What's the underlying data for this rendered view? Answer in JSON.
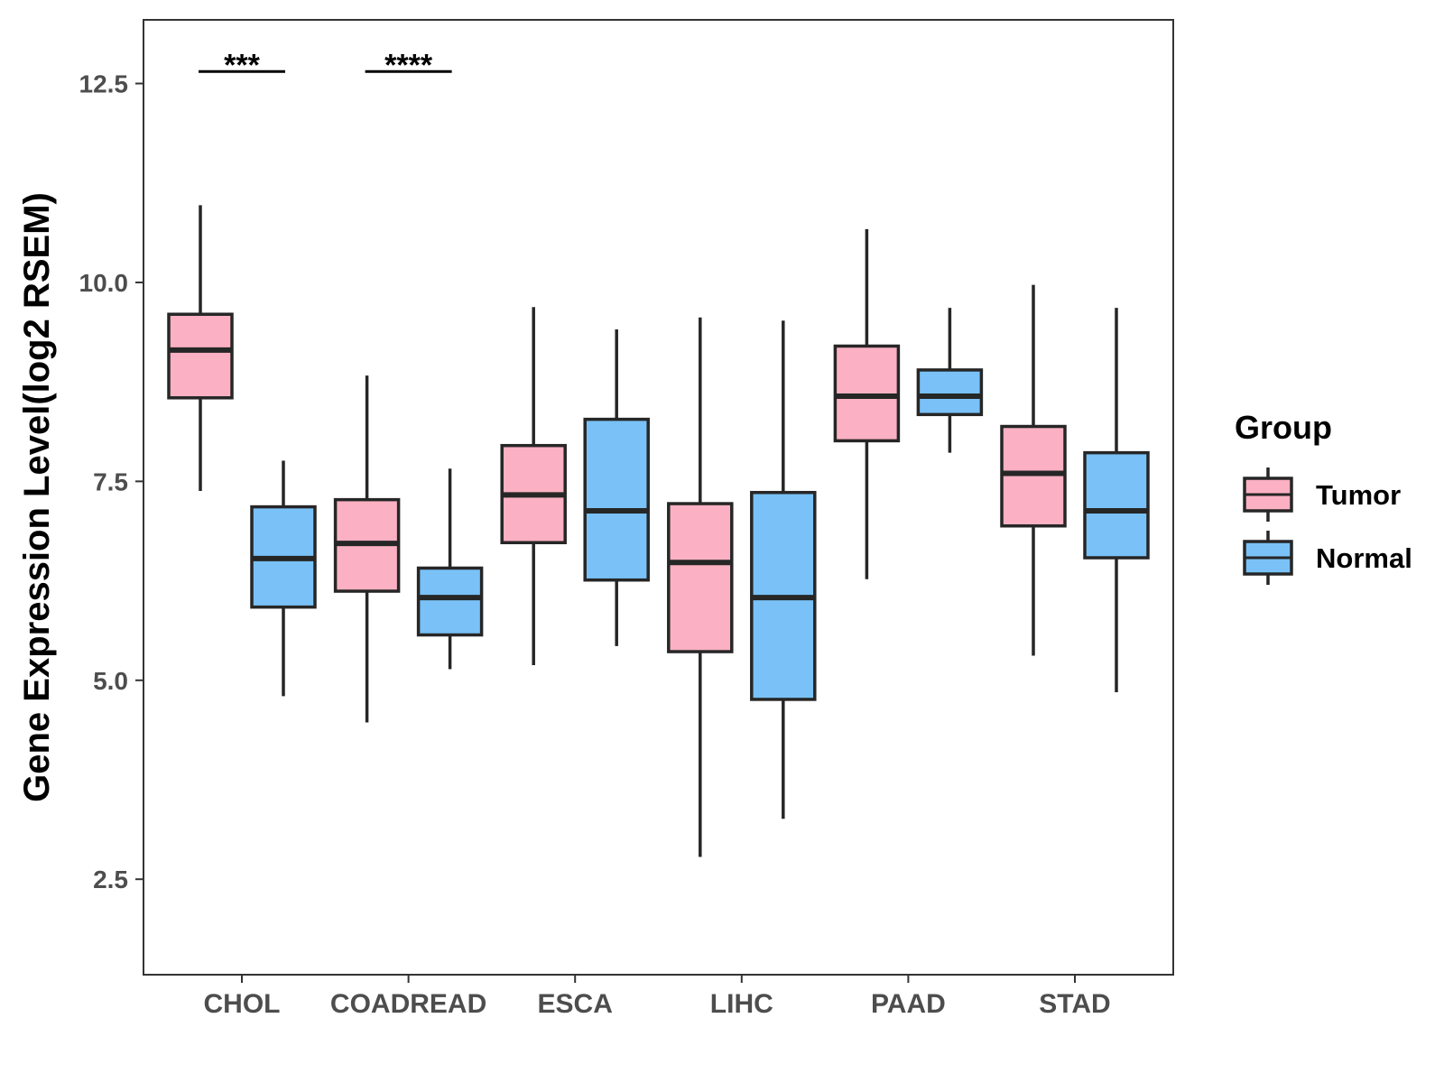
{
  "chart_data": {
    "type": "boxplot",
    "title": "",
    "xlabel": "",
    "ylabel": "Gene Expression Level(log2 RSEM)",
    "ylim": [
      1.3,
      13.3
    ],
    "yticks": [
      2.5,
      5.0,
      7.5,
      10.0,
      12.5
    ],
    "ytick_labels": [
      "2.5",
      "5.0",
      "7.5",
      "10.0",
      "12.5"
    ],
    "categories": [
      "CHOL",
      "COADREAD",
      "ESCA",
      "LIHC",
      "PAAD",
      "STAD"
    ],
    "legend": {
      "title": "Group",
      "position": "right",
      "entries": [
        "Tumor",
        "Normal"
      ]
    },
    "colors": {
      "Tumor": "#fbb1c3",
      "Normal": "#79c1f7",
      "stroke": "#262626",
      "axis": "#333333"
    },
    "series": [
      {
        "name": "Tumor",
        "boxes": [
          {
            "min": 7.38,
            "q1": 8.55,
            "median": 9.15,
            "q3": 9.6,
            "max": 10.97
          },
          {
            "min": 4.47,
            "q1": 6.12,
            "median": 6.72,
            "q3": 7.27,
            "max": 8.83
          },
          {
            "min": 5.19,
            "q1": 6.73,
            "median": 7.33,
            "q3": 7.95,
            "max": 9.69
          },
          {
            "min": 2.78,
            "q1": 5.36,
            "median": 6.48,
            "q3": 7.22,
            "max": 9.56
          },
          {
            "min": 6.27,
            "q1": 8.01,
            "median": 8.57,
            "q3": 9.2,
            "max": 10.67
          },
          {
            "min": 5.31,
            "q1": 6.94,
            "median": 7.6,
            "q3": 8.19,
            "max": 9.97
          }
        ]
      },
      {
        "name": "Normal",
        "boxes": [
          {
            "min": 4.8,
            "q1": 5.92,
            "median": 6.53,
            "q3": 7.18,
            "max": 7.76
          },
          {
            "min": 5.14,
            "q1": 5.57,
            "median": 6.04,
            "q3": 6.41,
            "max": 7.66
          },
          {
            "min": 5.43,
            "q1": 6.26,
            "median": 7.13,
            "q3": 8.28,
            "max": 9.41
          },
          {
            "min": 3.26,
            "q1": 4.76,
            "median": 6.04,
            "q3": 7.36,
            "max": 9.52
          },
          {
            "min": 7.86,
            "q1": 8.34,
            "median": 8.57,
            "q3": 8.9,
            "max": 9.68
          },
          {
            "min": 4.85,
            "q1": 6.54,
            "median": 7.13,
            "q3": 7.86,
            "max": 9.68
          }
        ]
      }
    ],
    "annotations": [
      {
        "category": "CHOL",
        "text": "***",
        "y": 12.65
      },
      {
        "category": "COADREAD",
        "text": "****",
        "y": 12.65
      }
    ]
  }
}
